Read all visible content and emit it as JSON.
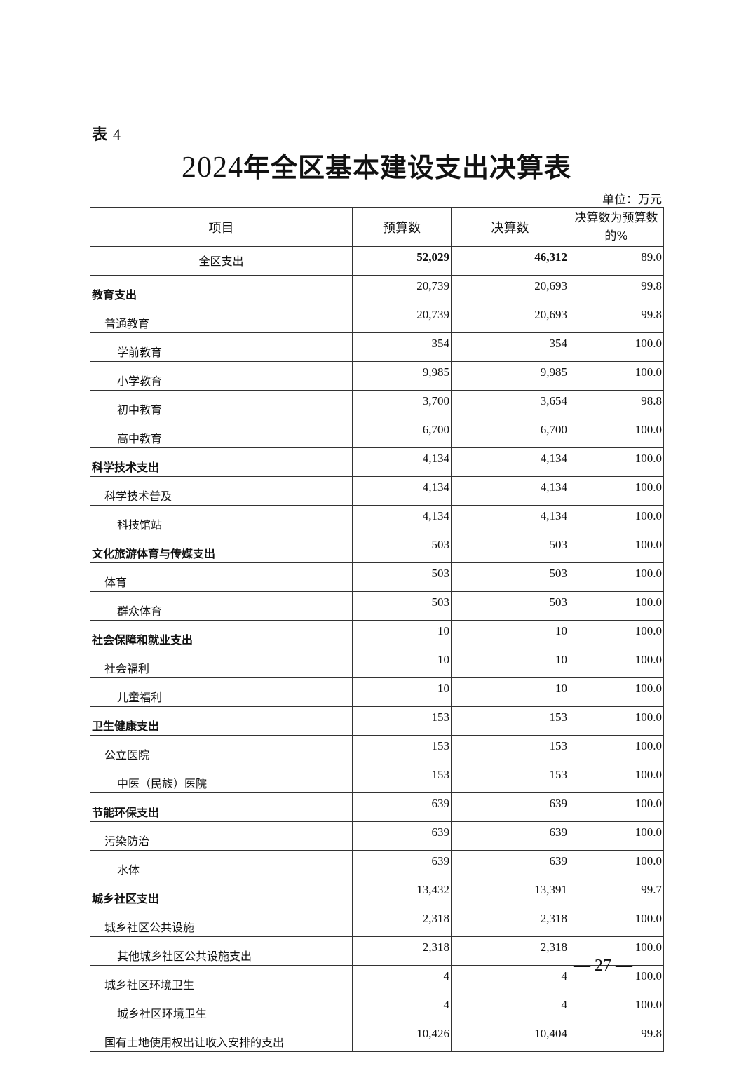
{
  "table_label": {
    "prefix": "表",
    "number": "4"
  },
  "title": {
    "year": "2024",
    "text": "年全区基本建设支出决算表"
  },
  "unit": "单位：万元",
  "columns": [
    "项目",
    "预算数",
    "决算数",
    "决算数为预算数的%"
  ],
  "rows": [
    {
      "level": "total",
      "item": "全区支出",
      "budget": "52,029",
      "final": "46,312",
      "pct": "89.0"
    },
    {
      "level": 0,
      "item": "教育支出",
      "budget": "20,739",
      "final": "20,693",
      "pct": "99.8"
    },
    {
      "level": 1,
      "item": "普通教育",
      "budget": "20,739",
      "final": "20,693",
      "pct": "99.8"
    },
    {
      "level": 2,
      "item": "学前教育",
      "budget": "354",
      "final": "354",
      "pct": "100.0"
    },
    {
      "level": 2,
      "item": "小学教育",
      "budget": "9,985",
      "final": "9,985",
      "pct": "100.0"
    },
    {
      "level": 2,
      "item": "初中教育",
      "budget": "3,700",
      "final": "3,654",
      "pct": "98.8"
    },
    {
      "level": 2,
      "item": "高中教育",
      "budget": "6,700",
      "final": "6,700",
      "pct": "100.0"
    },
    {
      "level": 0,
      "item": "科学技术支出",
      "budget": "4,134",
      "final": "4,134",
      "pct": "100.0"
    },
    {
      "level": 1,
      "item": "科学技术普及",
      "budget": "4,134",
      "final": "4,134",
      "pct": "100.0"
    },
    {
      "level": 2,
      "item": "科技馆站",
      "budget": "4,134",
      "final": "4,134",
      "pct": "100.0"
    },
    {
      "level": 0,
      "item": "文化旅游体育与传媒支出",
      "budget": "503",
      "final": "503",
      "pct": "100.0"
    },
    {
      "level": 1,
      "item": "体育",
      "budget": "503",
      "final": "503",
      "pct": "100.0"
    },
    {
      "level": 2,
      "item": "群众体育",
      "budget": "503",
      "final": "503",
      "pct": "100.0"
    },
    {
      "level": 0,
      "item": "社会保障和就业支出",
      "budget": "10",
      "final": "10",
      "pct": "100.0"
    },
    {
      "level": 1,
      "item": "社会福利",
      "budget": "10",
      "final": "10",
      "pct": "100.0"
    },
    {
      "level": 2,
      "item": "儿童福利",
      "budget": "10",
      "final": "10",
      "pct": "100.0"
    },
    {
      "level": 0,
      "item": "卫生健康支出",
      "budget": "153",
      "final": "153",
      "pct": "100.0"
    },
    {
      "level": 1,
      "item": "公立医院",
      "budget": "153",
      "final": "153",
      "pct": "100.0"
    },
    {
      "level": 2,
      "item": "中医（民族）医院",
      "budget": "153",
      "final": "153",
      "pct": "100.0"
    },
    {
      "level": 0,
      "item": "节能环保支出",
      "budget": "639",
      "final": "639",
      "pct": "100.0"
    },
    {
      "level": 1,
      "item": "污染防治",
      "budget": "639",
      "final": "639",
      "pct": "100.0"
    },
    {
      "level": 2,
      "item": "水体",
      "budget": "639",
      "final": "639",
      "pct": "100.0"
    },
    {
      "level": 0,
      "item": "城乡社区支出",
      "budget": "13,432",
      "final": "13,391",
      "pct": "99.7"
    },
    {
      "level": 1,
      "item": "城乡社区公共设施",
      "budget": "2,318",
      "final": "2,318",
      "pct": "100.0"
    },
    {
      "level": 2,
      "item": "其他城乡社区公共设施支出",
      "budget": "2,318",
      "final": "2,318",
      "pct": "100.0"
    },
    {
      "level": 1,
      "item": "城乡社区环境卫生",
      "budget": "4",
      "final": "4",
      "pct": "100.0"
    },
    {
      "level": 2,
      "item": "城乡社区环境卫生",
      "budget": "4",
      "final": "4",
      "pct": "100.0"
    },
    {
      "level": 1,
      "item": "国有土地使用权出让收入安排的支出",
      "budget": "10,426",
      "final": "10,404",
      "pct": "99.8"
    }
  ],
  "page_number": "— 27 —"
}
